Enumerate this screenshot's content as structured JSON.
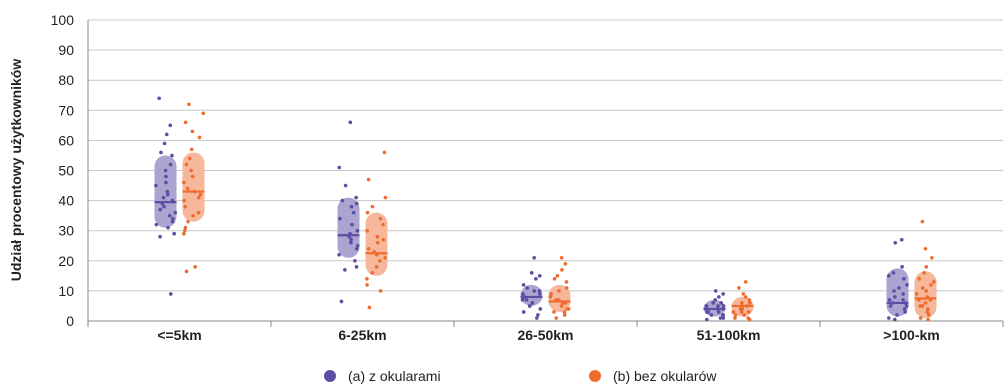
{
  "chart_data": {
    "type": "scatter",
    "ylabel": "Udział procentowy użytkowników",
    "xlabel": "",
    "ylim": [
      0,
      100
    ],
    "yticks": [
      "0",
      "10",
      "20",
      "30",
      "40",
      "50",
      "60",
      "70",
      "80",
      "90",
      "100"
    ],
    "grid": true,
    "legend_position": "bottom",
    "categories": [
      "<=5km",
      "6-25km",
      "26-50km",
      "51-100km",
      ">100-km"
    ],
    "series": [
      {
        "name": "(a) z okularami",
        "color": "#5b4ea3",
        "band_color": "#aaa4d0",
        "median": [
          39.5,
          28.5,
          8,
          4,
          6
        ],
        "q1": [
          31,
          21,
          5,
          1.5,
          1.5
        ],
        "q3": [
          55,
          41,
          12,
          7,
          17.5
        ],
        "points": [
          [
            74,
            65,
            62,
            59,
            56,
            55,
            52,
            50,
            48,
            46,
            45,
            43,
            42,
            41,
            40,
            39,
            38,
            37,
            36,
            35,
            34,
            33,
            32,
            31,
            29,
            28,
            9
          ],
          [
            66,
            51,
            45,
            41,
            40,
            39,
            38,
            36,
            34,
            32,
            30,
            29,
            28,
            27,
            26,
            25,
            24,
            22,
            20,
            18,
            17,
            6.5
          ],
          [
            21,
            16,
            15,
            14,
            12,
            11,
            10,
            10,
            9,
            9,
            8,
            8,
            7,
            7,
            6,
            6,
            5,
            5,
            4,
            3,
            2,
            1
          ],
          [
            10,
            9,
            8,
            7,
            6,
            6,
            5,
            5,
            5,
            4,
            4,
            4,
            3,
            3,
            3,
            2,
            2,
            2,
            1,
            1,
            0.5
          ],
          [
            27,
            26,
            18,
            16,
            15,
            14,
            12,
            11,
            10,
            9,
            8,
            7,
            7,
            6,
            6,
            5,
            5,
            4,
            3,
            2,
            1,
            0.5
          ]
        ]
      },
      {
        "name": "(b) bez okularów",
        "color": "#ef6c2d",
        "band_color": "#f6b79a",
        "median": [
          43,
          22.5,
          6.5,
          5,
          7.5
        ],
        "q1": [
          33,
          15,
          3,
          1.5,
          1
        ],
        "q3": [
          56,
          36,
          12,
          8,
          16.5
        ],
        "points": [
          [
            72,
            69,
            66,
            63,
            61,
            57,
            54,
            52,
            50,
            48,
            46,
            44,
            43,
            42,
            41,
            40,
            38,
            36,
            35,
            33,
            31,
            30,
            29,
            18,
            16.5
          ],
          [
            56,
            47,
            41,
            38,
            36,
            34,
            32,
            30,
            28,
            27,
            26,
            24,
            23,
            22,
            21,
            20,
            18,
            16,
            14,
            12,
            10,
            4.5
          ],
          [
            21,
            19,
            17,
            15,
            14,
            13,
            11,
            10,
            9,
            8,
            7,
            7,
            6,
            6,
            5,
            4,
            4,
            3,
            3,
            2,
            1
          ],
          [
            13,
            11,
            9,
            8,
            7,
            6,
            6,
            5,
            5,
            4,
            4,
            3,
            3,
            3,
            2,
            2,
            1,
            1,
            0.5
          ],
          [
            33,
            24,
            21,
            18,
            16,
            14,
            13,
            12,
            11,
            10,
            9,
            8,
            7,
            7,
            6,
            5,
            5,
            4,
            3,
            2,
            1,
            0.5
          ]
        ]
      }
    ]
  },
  "colors": {
    "gridline": "#c8c8c8",
    "axis": "#888888",
    "text": "#222222"
  }
}
